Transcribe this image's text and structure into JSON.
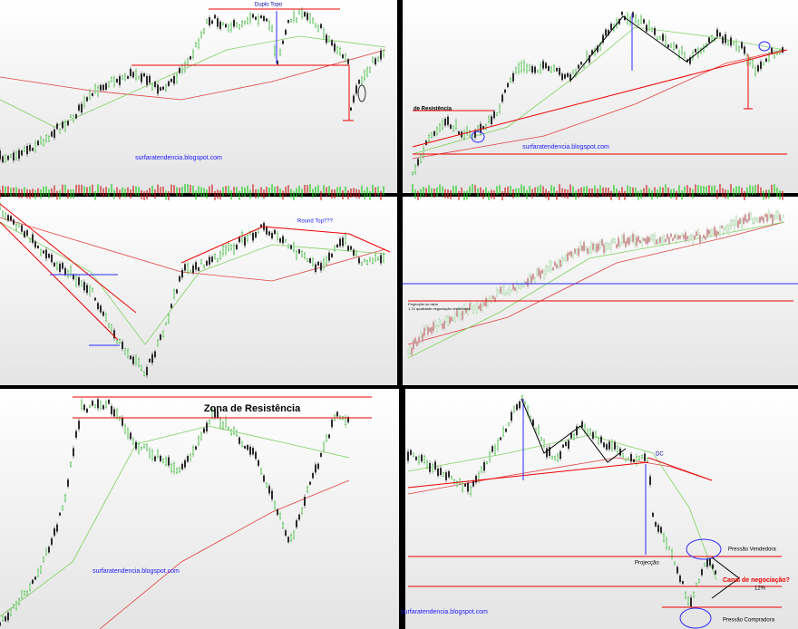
{
  "panels": [
    {
      "annotations": [
        "Duplo Topo"
      ],
      "watermark": "surfaratendencia.blogspot.com"
    },
    {
      "annotations": [
        "de Resistência"
      ],
      "watermark": "surfaratendencia.blogspot.com"
    },
    {
      "annotations": [
        "Round Top???"
      ]
    },
    {
      "annotations": [
        "Projecção no rácio",
        "1,74 qualidade negociação resistência"
      ]
    },
    {
      "annotations": [
        "Zona de Resistência"
      ],
      "watermark": "surfaratendencia.blogspot.com"
    },
    {
      "annotations": [
        "DC",
        "Projecção",
        "Pressão Vendedora",
        "Canal de negociação?",
        "12%",
        "Pressão Compradora"
      ],
      "watermark": "surfaratendencia.blogspot.com"
    }
  ]
}
